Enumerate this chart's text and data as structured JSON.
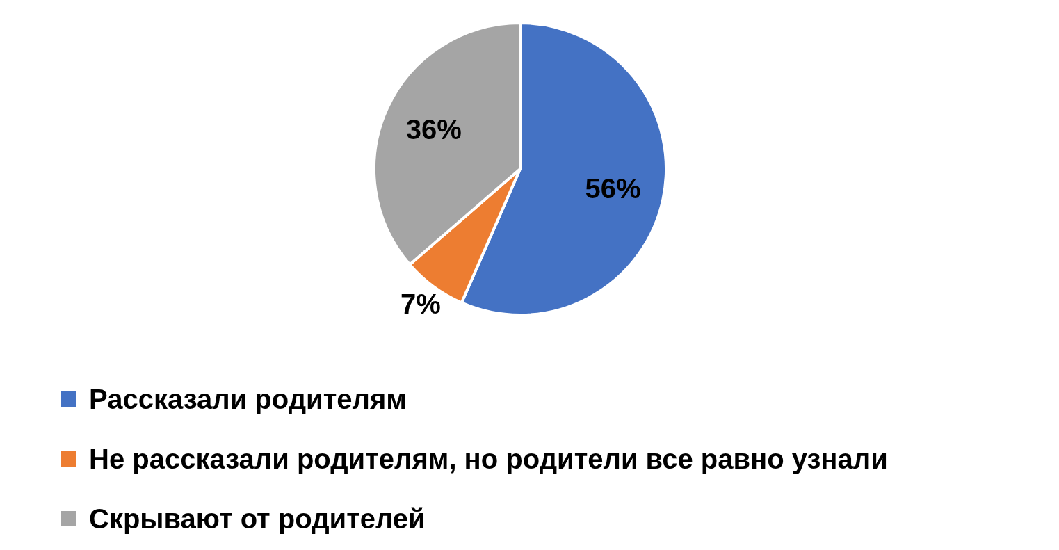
{
  "chart_data": {
    "type": "pie",
    "categories": [
      "Рассказали родителям",
      "Не рассказали родителям, но родители все равно узнали",
      "Скрывают от родителей"
    ],
    "values": [
      56,
      7,
      36
    ],
    "colors": [
      "#4472c4",
      "#ed7d31",
      "#a5a5a5"
    ],
    "value_labels": [
      "56%",
      "7%",
      "36%"
    ],
    "legend": "bottom"
  }
}
